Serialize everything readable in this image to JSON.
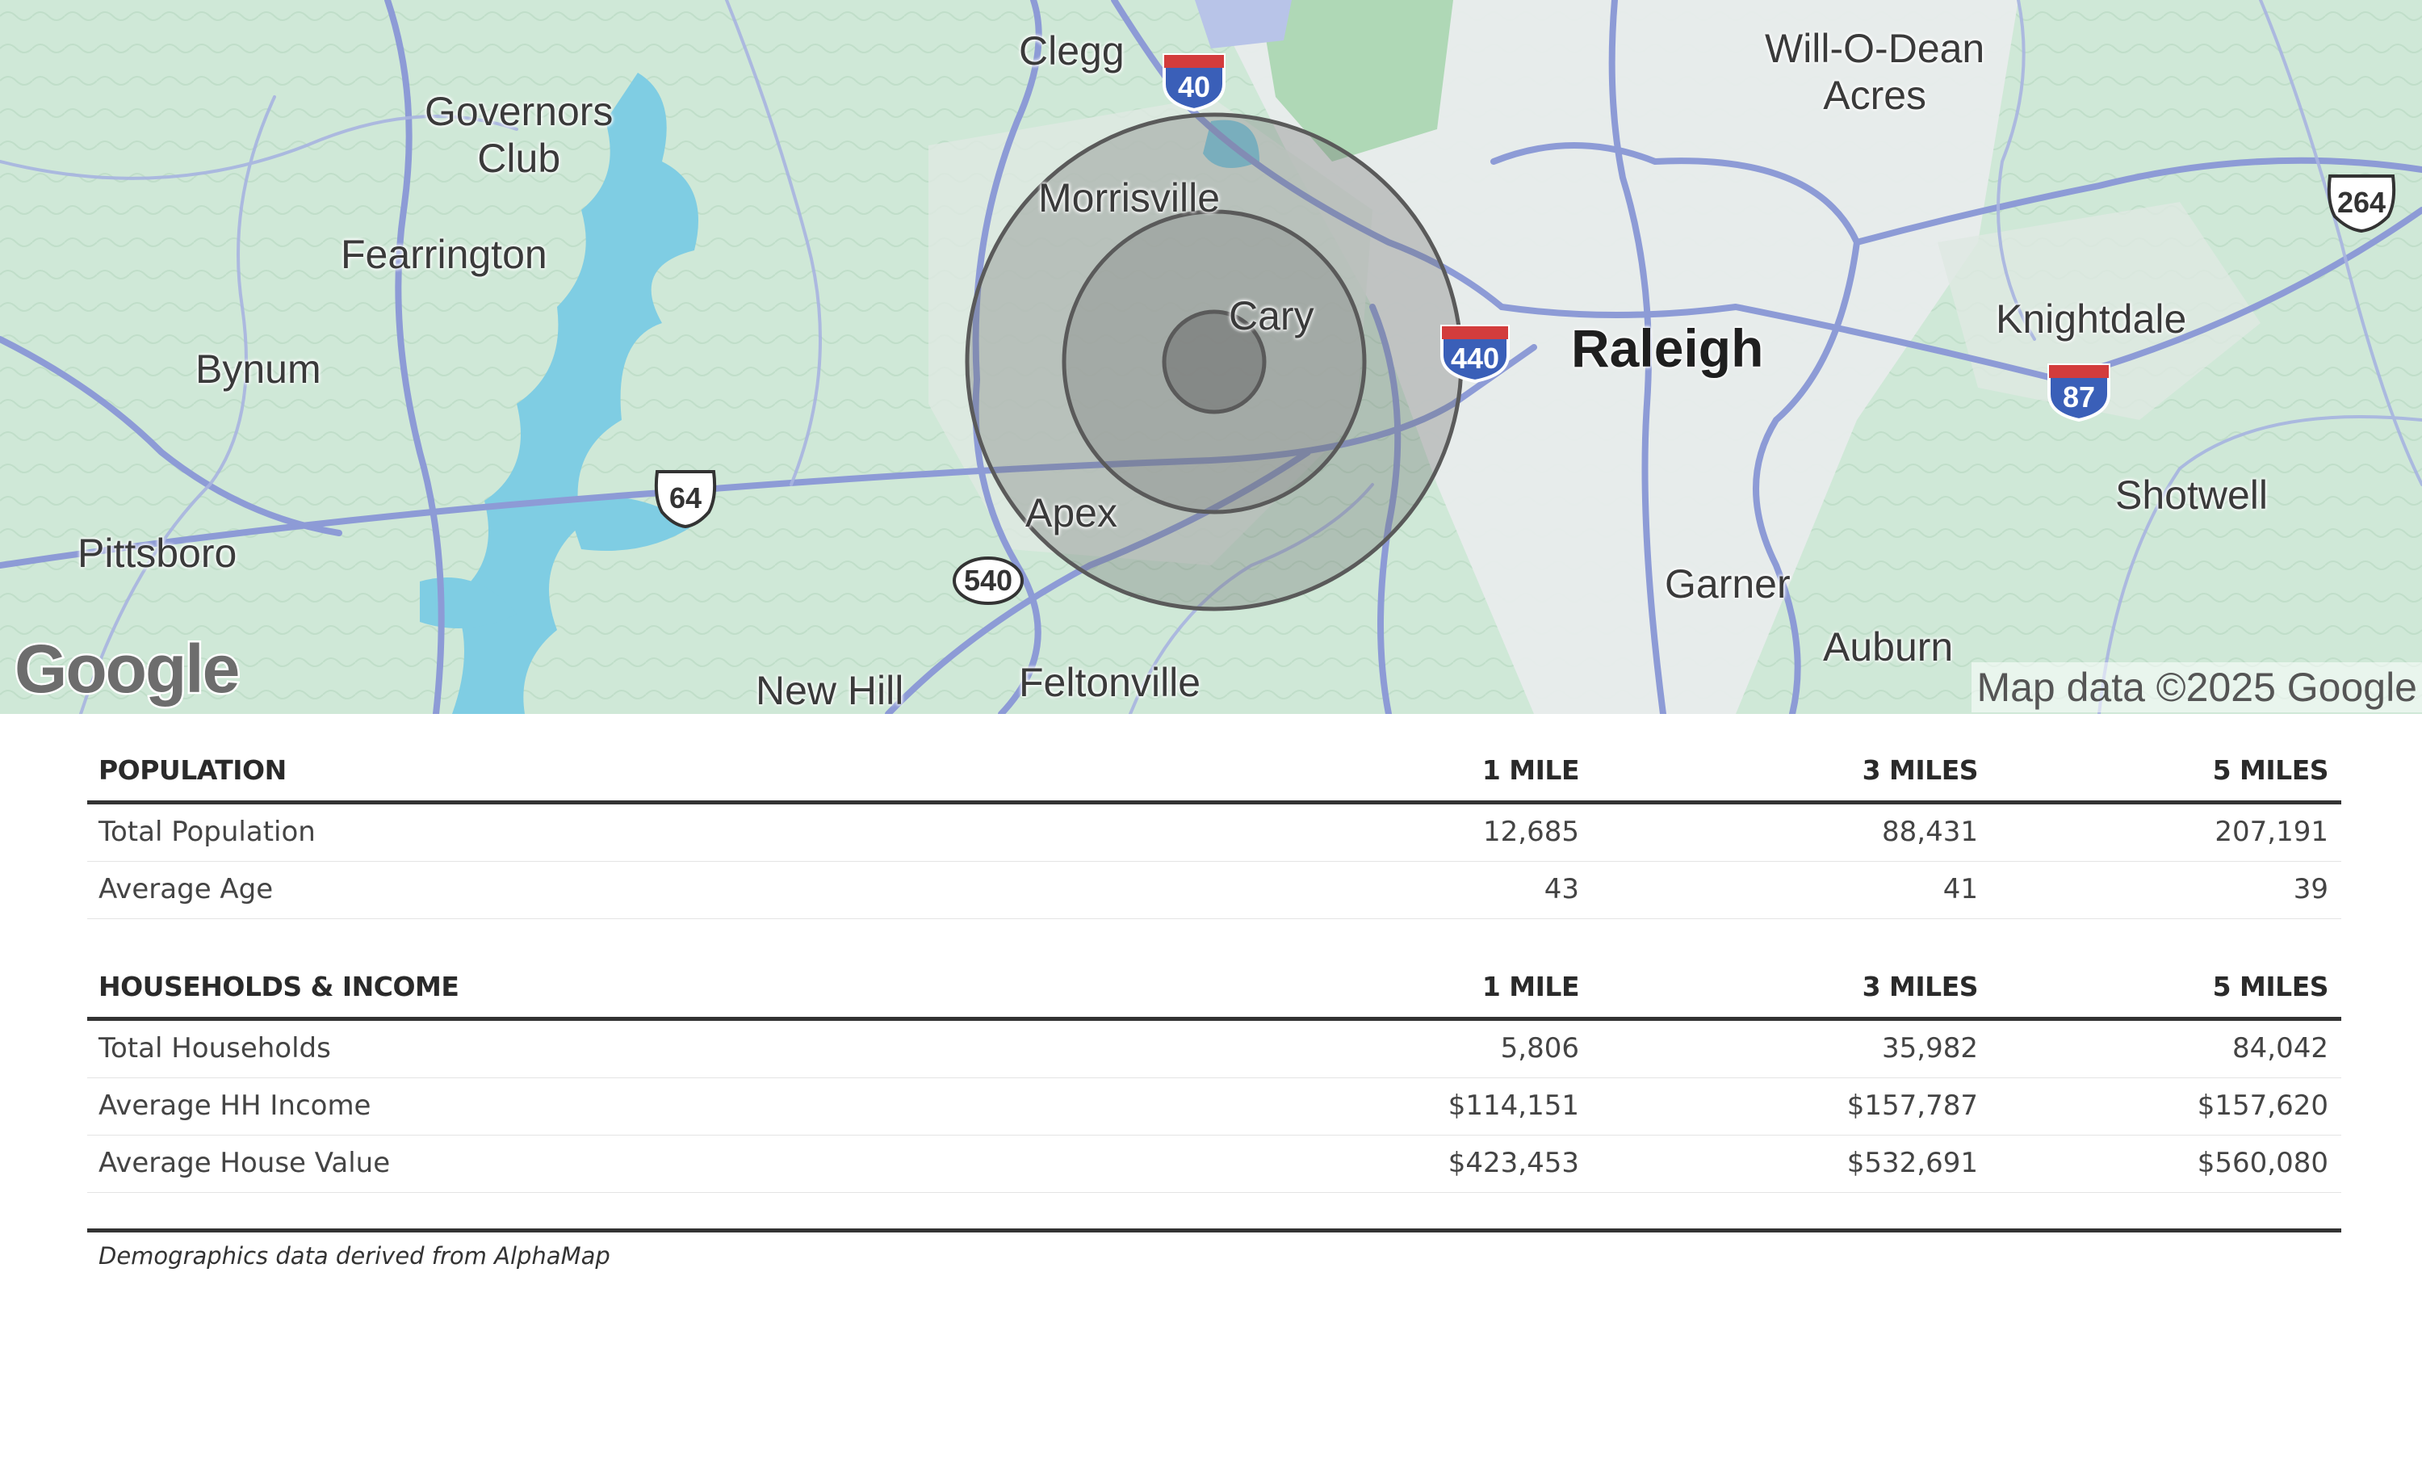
{
  "map": {
    "places": {
      "clegg": "Clegg",
      "governors_club": "Governors\nClub",
      "will_o_dean_acres": "Will-O-Dean\nAcres",
      "morrisville": "Morrisville",
      "fearrington": "Fearrington",
      "cary": "Cary",
      "raleigh": "Raleigh",
      "knightdale": "Knightdale",
      "bynum": "Bynum",
      "apex": "Apex",
      "shotwell": "Shotwell",
      "pittsboro": "Pittsboro",
      "garner": "Garner",
      "auburn": "Auburn",
      "new_hill": "New Hill",
      "feltonville": "Feltonville"
    },
    "shields": {
      "i40": "40",
      "i440": "440",
      "i87": "87",
      "us64": "64",
      "us264": "264",
      "nc540": "540"
    },
    "logo": "Google",
    "attribution": "Map data ©2025 Google",
    "radius_rings_miles": [
      1,
      3,
      5
    ],
    "colors": {
      "land": "#cfe8d7",
      "water": "#7fcde3",
      "roads": "#8d9bd6",
      "urban": "#e9eeee",
      "ring_fill": "#6e6e6e"
    }
  },
  "population": {
    "header": "POPULATION",
    "columns": [
      "1 MILE",
      "3 MILES",
      "5 MILES"
    ],
    "rows": [
      {
        "label": "Total Population",
        "values": [
          "12,685",
          "88,431",
          "207,191"
        ]
      },
      {
        "label": "Average Age",
        "values": [
          "43",
          "41",
          "39"
        ]
      }
    ]
  },
  "households": {
    "header": "HOUSEHOLDS & INCOME",
    "columns": [
      "1 MILE",
      "3 MILES",
      "5 MILES"
    ],
    "rows": [
      {
        "label": "Total Households",
        "values": [
          "5,806",
          "35,982",
          "84,042"
        ]
      },
      {
        "label": "Average HH Income",
        "values": [
          "$114,151",
          "$157,787",
          "$157,620"
        ]
      },
      {
        "label": "Average House Value",
        "values": [
          "$423,453",
          "$532,691",
          "$560,080"
        ]
      }
    ]
  },
  "footnote": "Demographics data derived from AlphaMap"
}
